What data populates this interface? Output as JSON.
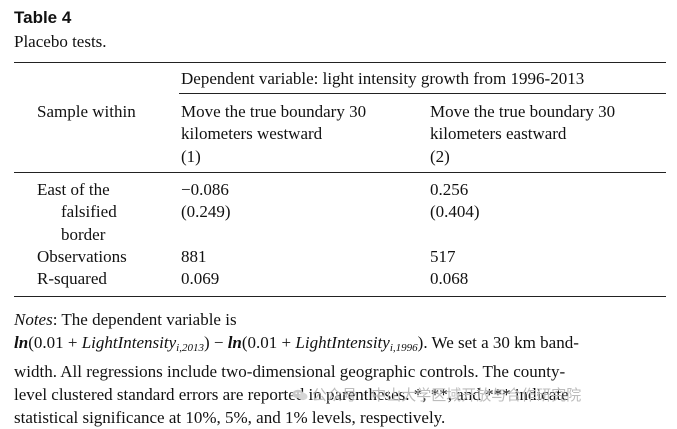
{
  "table": {
    "label": "Table 4",
    "caption": "Placebo tests.",
    "header": {
      "dependent_variable": "Dependent variable: light intensity growth from 1996-2013",
      "row_header": "Sample within",
      "col1_line1": "Move the true boundary 30",
      "col1_line2": "kilometers westward",
      "col1_num": "(1)",
      "col2_line1": "Move the true boundary 30",
      "col2_line2": "kilometers eastward",
      "col2_num": "(2)"
    },
    "rows": {
      "east": {
        "label_line1": "East of the",
        "label_line2": "falsified",
        "label_line3": "border",
        "col1_coef": "−0.086",
        "col1_se": "(0.249)",
        "col2_coef": "0.256",
        "col2_se": "(0.404)"
      },
      "observations": {
        "label": "Observations",
        "col1": "881",
        "col2": "517"
      },
      "rsquared": {
        "label": "R-squared",
        "col1": "0.069",
        "col2": "0.068"
      }
    }
  },
  "notes": {
    "label": "Notes",
    "colon": ":",
    "w1": "The",
    "w2": "dependent",
    "w3": "variable",
    "w4": "is",
    "eq_ln1": "ln",
    "eq_open1": "(0.01 + ",
    "eq_var1": "LightIntensity",
    "eq_sub1": "i,2013",
    "eq_close1": ") − ",
    "eq_ln2": "ln",
    "eq_open2": "(0.01 + ",
    "eq_var2": "LightIntensity",
    "eq_sub2": "i,1996",
    "eq_close2": ").",
    "line2_rest": " We set a 30 km band-",
    "line3": "width. All regressions include two-dimensional geographic controls. The county-",
    "line4": "level clustered standard errors are reported in parentheses. *, **, and *** indicate",
    "line5": "statistical significance at 10%, 5%, and 1% levels, respectively."
  },
  "watermark": {
    "text": "公众号 · 中山大学区域开放与合作研究院",
    "icon": "wechat-icon"
  }
}
